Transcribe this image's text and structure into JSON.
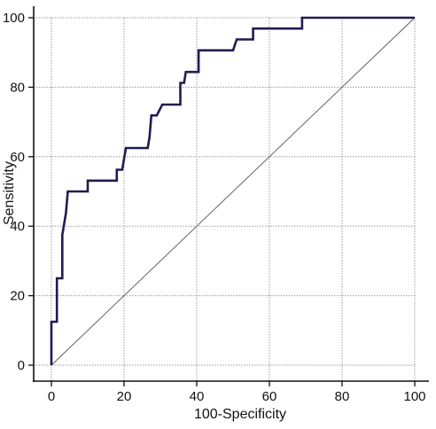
{
  "chart_data": {
    "type": "line",
    "title": "",
    "xlabel": "100-Specificity",
    "ylabel": "Sensitivity",
    "xlim": [
      0,
      100
    ],
    "ylim": [
      0,
      100
    ],
    "x_ticks": [
      "0",
      "20",
      "40",
      "60",
      "80",
      "100"
    ],
    "y_ticks": [
      "0",
      "20",
      "40",
      "60",
      "80",
      "100"
    ],
    "grid": true,
    "legend": "none",
    "colors": {
      "curve": "#1f1d4f",
      "diagonal": "#555555",
      "grid": "#9a9a9a",
      "axis": "#111111"
    },
    "series": [
      {
        "points": [
          [
            0,
            0
          ],
          [
            0,
            12.5
          ],
          [
            1.5,
            12.5
          ],
          [
            1.5,
            25
          ],
          [
            3,
            25
          ],
          [
            3,
            37.5
          ],
          [
            4,
            43.75
          ],
          [
            4.5,
            50
          ],
          [
            10,
            50
          ],
          [
            10,
            53.1
          ],
          [
            18,
            53.1
          ],
          [
            18,
            56.25
          ],
          [
            19.5,
            56.25
          ],
          [
            20.5,
            62.5
          ],
          [
            26.5,
            62.5
          ],
          [
            27,
            65.6
          ],
          [
            27.5,
            71.9
          ],
          [
            29,
            71.9
          ],
          [
            30.5,
            75
          ],
          [
            35.5,
            75
          ],
          [
            35.5,
            81.25
          ],
          [
            36.5,
            81.25
          ],
          [
            37,
            84.4
          ],
          [
            40.5,
            84.4
          ],
          [
            40.5,
            90.6
          ],
          [
            50,
            90.6
          ],
          [
            51,
            93.75
          ],
          [
            55.5,
            93.75
          ],
          [
            55.5,
            96.9
          ],
          [
            69,
            96.9
          ],
          [
            69,
            100
          ],
          [
            100,
            100
          ]
        ]
      },
      {
        "points": [
          [
            0,
            0
          ],
          [
            100,
            100
          ]
        ]
      }
    ]
  }
}
